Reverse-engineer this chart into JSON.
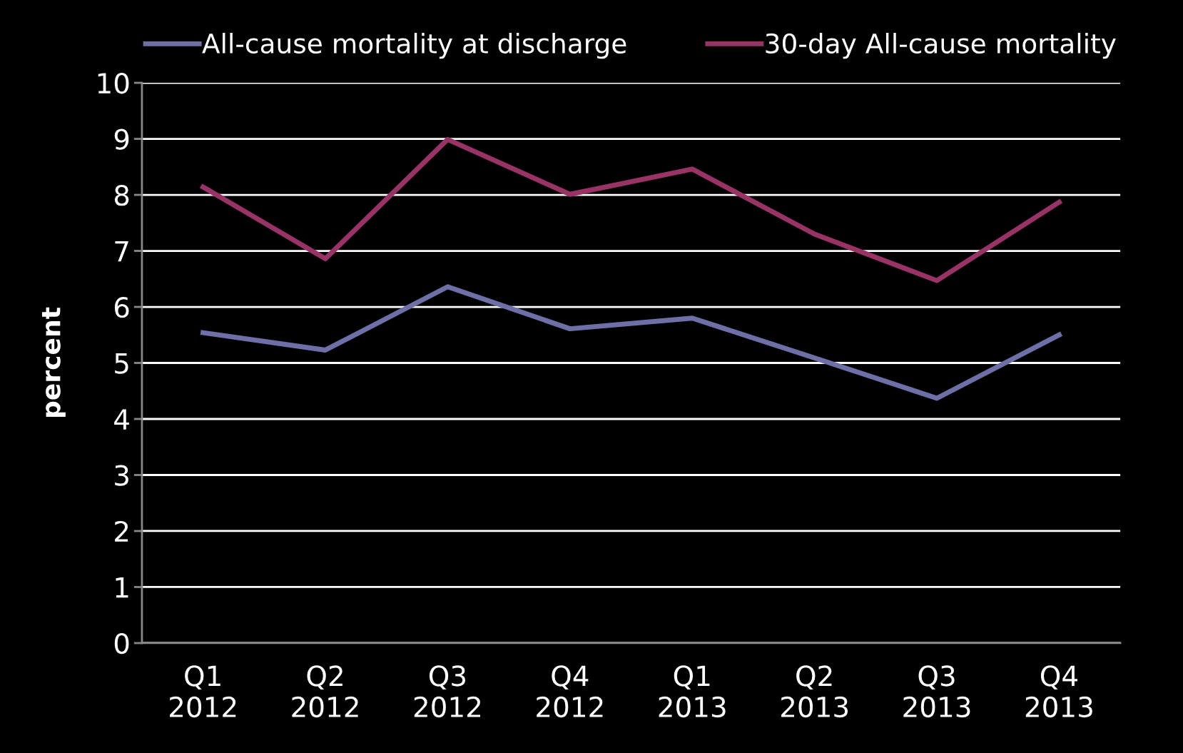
{
  "chart_data": {
    "type": "line",
    "ylabel": "percent",
    "categories": [
      "Q1\n2012",
      "Q2\n2012",
      "Q3\n2012",
      "Q4\n2012",
      "Q1\n2013",
      "Q2\n2013",
      "Q3\n2013",
      "Q4\n2013"
    ],
    "series": [
      {
        "name": "All-cause mortality at discharge",
        "color": "#6f6fa8",
        "values": [
          5.54,
          5.23,
          6.36,
          5.61,
          5.8,
          5.09,
          4.37,
          5.5
        ]
      },
      {
        "name": "30-day All-cause mortality",
        "color": "#993366",
        "values": [
          8.14,
          6.86,
          8.99,
          8.01,
          8.46,
          7.3,
          6.47,
          7.87
        ]
      }
    ],
    "ylim": [
      0,
      10
    ],
    "yticks": [
      0,
      1,
      2,
      3,
      4,
      5,
      6,
      7,
      8,
      9,
      10
    ],
    "grid": "y",
    "legend": "top",
    "marker": "none",
    "line_style": "solid"
  }
}
